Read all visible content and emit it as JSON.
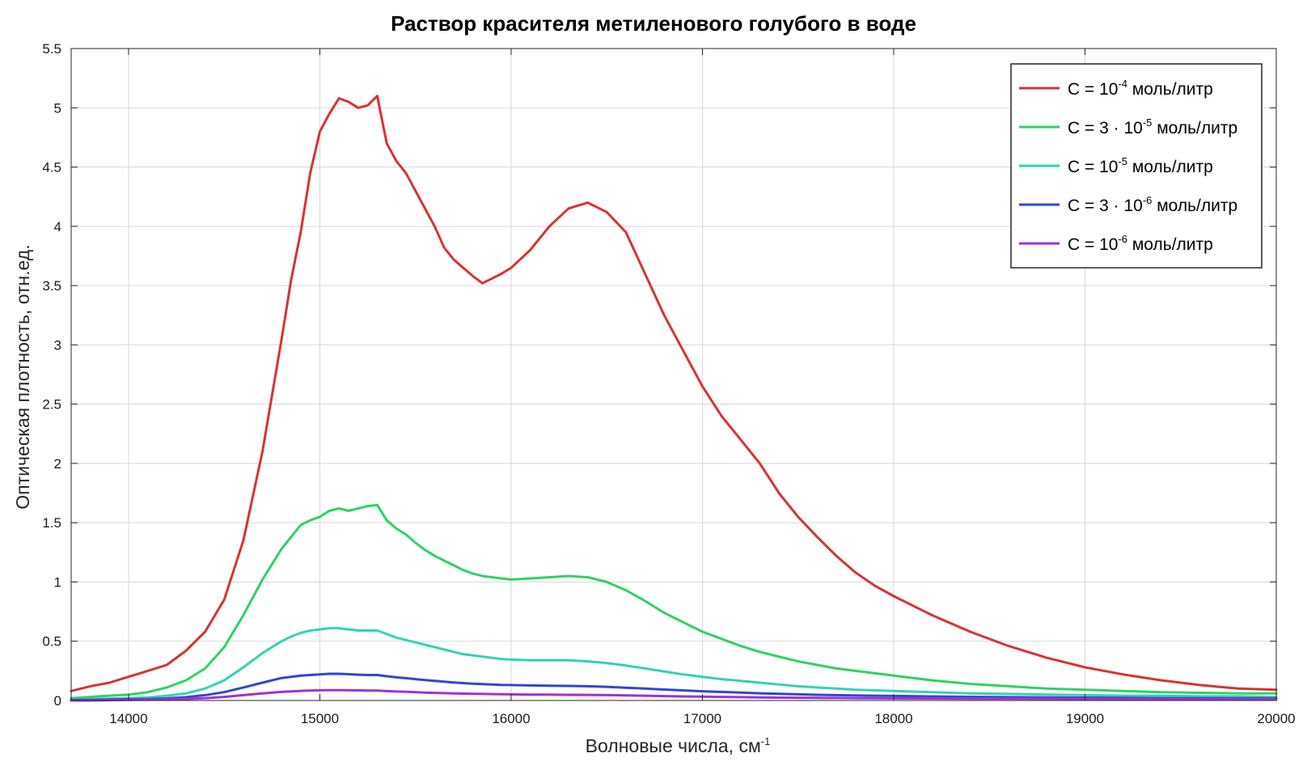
{
  "chart_data": {
    "type": "line",
    "title": "Раствор красителя метиленового голубого в воде",
    "xlabel": "Волновые числа, см",
    "xlabel_superscript": "-1",
    "ylabel": "Оптическая плотность, отн.ед.",
    "xlim": [
      13700,
      20000
    ],
    "ylim": [
      0,
      5.5
    ],
    "x_ticks": [
      14000,
      15000,
      16000,
      17000,
      18000,
      19000,
      20000
    ],
    "y_ticks": [
      0,
      0.5,
      1,
      1.5,
      2,
      2.5,
      3,
      3.5,
      4,
      4.5,
      5,
      5.5
    ],
    "y_tick_labels": [
      "0",
      "0.5",
      "1",
      "1.5",
      "2",
      "2.5",
      "3",
      "3.5",
      "4",
      "4.5",
      "5",
      "5.5"
    ],
    "grid": true,
    "legend_position": "top-right",
    "x": [
      13700,
      13800,
      13900,
      14000,
      14100,
      14200,
      14300,
      14400,
      14500,
      14600,
      14700,
      14800,
      14850,
      14900,
      14950,
      15000,
      15050,
      15100,
      15150,
      15200,
      15250,
      15300,
      15350,
      15400,
      15450,
      15500,
      15550,
      15600,
      15650,
      15700,
      15750,
      15800,
      15850,
      15900,
      15950,
      16000,
      16100,
      16200,
      16300,
      16400,
      16500,
      16600,
      16700,
      16800,
      16900,
      17000,
      17100,
      17200,
      17300,
      17400,
      17500,
      17600,
      17700,
      17800,
      17900,
      18000,
      18200,
      18400,
      18600,
      18800,
      19000,
      19200,
      19400,
      19600,
      19800,
      20000
    ],
    "series": [
      {
        "name": "C = 10-4 моль/литр",
        "legend_base": "C = 10",
        "legend_exp": "-4",
        "legend_unit": " моль/литр",
        "color": "#d93232",
        "values": [
          0.08,
          0.12,
          0.15,
          0.2,
          0.25,
          0.3,
          0.42,
          0.58,
          0.85,
          1.35,
          2.1,
          3.05,
          3.55,
          3.95,
          4.45,
          4.8,
          4.95,
          5.08,
          5.05,
          5.0,
          5.02,
          5.1,
          4.7,
          4.55,
          4.45,
          4.3,
          4.15,
          4.0,
          3.82,
          3.72,
          3.65,
          3.58,
          3.52,
          3.56,
          3.6,
          3.65,
          3.8,
          4.0,
          4.15,
          4.2,
          4.12,
          3.95,
          3.6,
          3.25,
          2.95,
          2.65,
          2.4,
          2.2,
          2.0,
          1.75,
          1.55,
          1.38,
          1.22,
          1.08,
          0.97,
          0.88,
          0.72,
          0.58,
          0.46,
          0.36,
          0.28,
          0.22,
          0.17,
          0.13,
          0.1,
          0.09
        ]
      },
      {
        "name": "C = 3 · 10-5 моль/литр",
        "legend_base": "C = 3 · 10",
        "legend_exp": "-5",
        "legend_unit": " моль/литр",
        "color": "#2ed264",
        "values": [
          0.02,
          0.03,
          0.04,
          0.05,
          0.07,
          0.11,
          0.17,
          0.27,
          0.45,
          0.72,
          1.02,
          1.28,
          1.38,
          1.48,
          1.52,
          1.55,
          1.6,
          1.62,
          1.6,
          1.62,
          1.64,
          1.65,
          1.52,
          1.45,
          1.4,
          1.33,
          1.27,
          1.22,
          1.18,
          1.14,
          1.1,
          1.07,
          1.05,
          1.04,
          1.03,
          1.02,
          1.03,
          1.04,
          1.05,
          1.04,
          1.0,
          0.93,
          0.84,
          0.74,
          0.66,
          0.58,
          0.52,
          0.46,
          0.41,
          0.37,
          0.33,
          0.3,
          0.27,
          0.25,
          0.23,
          0.21,
          0.17,
          0.14,
          0.12,
          0.1,
          0.09,
          0.08,
          0.07,
          0.065,
          0.06,
          0.06
        ]
      },
      {
        "name": "C = 10-5 моль/литр",
        "legend_base": "C = 10",
        "legend_exp": "-5",
        "legend_unit": " моль/литр",
        "color": "#33d2b4",
        "values": [
          0.01,
          0.01,
          0.015,
          0.02,
          0.025,
          0.04,
          0.06,
          0.1,
          0.17,
          0.28,
          0.4,
          0.5,
          0.54,
          0.57,
          0.59,
          0.6,
          0.61,
          0.61,
          0.6,
          0.59,
          0.59,
          0.59,
          0.56,
          0.53,
          0.51,
          0.49,
          0.47,
          0.45,
          0.43,
          0.41,
          0.39,
          0.38,
          0.37,
          0.36,
          0.35,
          0.345,
          0.34,
          0.34,
          0.34,
          0.33,
          0.315,
          0.295,
          0.27,
          0.245,
          0.22,
          0.2,
          0.18,
          0.165,
          0.15,
          0.135,
          0.12,
          0.11,
          0.1,
          0.09,
          0.085,
          0.08,
          0.07,
          0.06,
          0.055,
          0.05,
          0.045,
          0.04,
          0.04,
          0.035,
          0.035,
          0.03
        ]
      },
      {
        "name": "C = 3 · 10-6 моль/литр",
        "legend_base": "C = 3 · 10",
        "legend_exp": "-6",
        "legend_unit": " моль/литр",
        "color": "#3246d2",
        "values": [
          0.005,
          0.005,
          0.008,
          0.01,
          0.012,
          0.018,
          0.028,
          0.045,
          0.07,
          0.11,
          0.15,
          0.19,
          0.2,
          0.21,
          0.215,
          0.22,
          0.225,
          0.225,
          0.222,
          0.218,
          0.215,
          0.215,
          0.205,
          0.195,
          0.188,
          0.18,
          0.172,
          0.165,
          0.158,
          0.152,
          0.147,
          0.142,
          0.138,
          0.135,
          0.132,
          0.13,
          0.127,
          0.125,
          0.123,
          0.12,
          0.115,
          0.108,
          0.1,
          0.092,
          0.085,
          0.078,
          0.072,
          0.066,
          0.061,
          0.056,
          0.052,
          0.048,
          0.045,
          0.042,
          0.04,
          0.038,
          0.034,
          0.031,
          0.028,
          0.026,
          0.024,
          0.022,
          0.02,
          0.019,
          0.018,
          0.017
        ]
      },
      {
        "name": "C = 10-6 моль/литр",
        "legend_base": "C = 10",
        "legend_exp": "-6",
        "legend_unit": " моль/литр",
        "color": "#a032d2",
        "values": [
          0.0,
          0.0,
          0.003,
          0.005,
          0.006,
          0.009,
          0.013,
          0.02,
          0.03,
          0.045,
          0.06,
          0.072,
          0.077,
          0.081,
          0.084,
          0.086,
          0.087,
          0.087,
          0.086,
          0.085,
          0.084,
          0.083,
          0.079,
          0.076,
          0.073,
          0.07,
          0.067,
          0.064,
          0.062,
          0.06,
          0.058,
          0.056,
          0.055,
          0.054,
          0.053,
          0.052,
          0.05,
          0.049,
          0.048,
          0.047,
          0.045,
          0.043,
          0.04,
          0.037,
          0.034,
          0.032,
          0.03,
          0.028,
          0.026,
          0.024,
          0.023,
          0.022,
          0.021,
          0.02,
          0.019,
          0.018,
          0.017,
          0.016,
          0.015,
          0.014,
          0.013,
          0.012,
          0.012,
          0.011,
          0.011,
          0.01
        ]
      }
    ]
  }
}
